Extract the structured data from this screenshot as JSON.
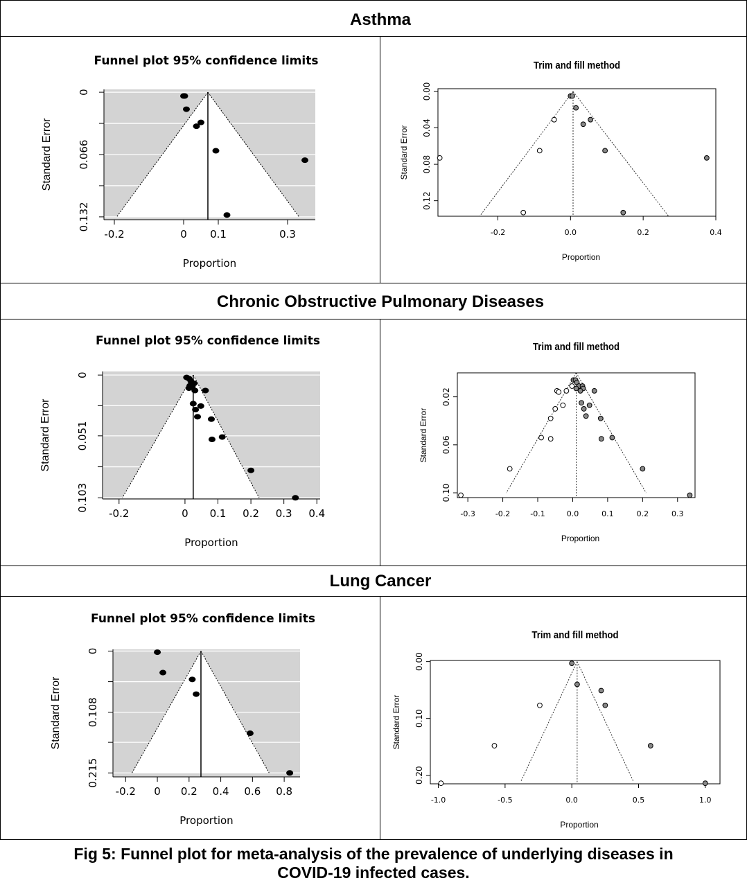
{
  "sections": [
    {
      "title": "Asthma",
      "funnel": {
        "type": "scatter",
        "title": "Funnel plot 95% confidence limits",
        "xlabel": "Proportion",
        "ylabel": "Standard Error",
        "xlim": [
          -0.23,
          0.38
        ],
        "ylim": [
          0.135,
          -0.003
        ],
        "xticks": [
          -0.2,
          0,
          0.1,
          0.3
        ],
        "xtick_labels": [
          "-0.2",
          "0",
          "0.1",
          "0.3"
        ],
        "yticks": [
          0,
          0.033,
          0.066,
          0.099,
          0.132
        ],
        "ytick_labels": [
          "0",
          "",
          "0.066",
          "",
          "0.132"
        ],
        "grid": true,
        "center": 0.07,
        "funnel_base_se": 0.132,
        "funnel_base_x": [
          -0.193,
          0.333
        ],
        "points": [
          {
            "x": 0.0,
            "y": 0.004
          },
          {
            "x": 0.003,
            "y": 0.004
          },
          {
            "x": 0.008,
            "y": 0.018
          },
          {
            "x": 0.037,
            "y": 0.036
          },
          {
            "x": 0.05,
            "y": 0.032
          },
          {
            "x": 0.093,
            "y": 0.062
          },
          {
            "x": 0.35,
            "y": 0.072
          },
          {
            "x": 0.125,
            "y": 0.13
          }
        ]
      },
      "trimfill": {
        "type": "scatter",
        "title": "Trim and fill method",
        "xlabel": "Proportion",
        "ylabel": "Standard Error",
        "xlim": [
          -0.365,
          0.4
        ],
        "ylim": [
          0.137,
          -0.003
        ],
        "xticks": [
          -0.2,
          0.0,
          0.2,
          0.4
        ],
        "xtick_labels": [
          "-0.2",
          "0.0",
          "0.2",
          "0.4"
        ],
        "yticks": [
          0.0,
          0.04,
          0.08,
          0.12
        ],
        "ytick_labels": [
          "0.00",
          "0.04",
          "0.08",
          "0.12"
        ],
        "grid": false,
        "center": 0.007,
        "funnel_base_se": 0.137,
        "funnel_base_x": [
          -0.25,
          0.27
        ],
        "points_filled": [
          {
            "x": 0.0,
            "y": 0.005
          },
          {
            "x": 0.005,
            "y": 0.005
          },
          {
            "x": 0.015,
            "y": 0.018
          },
          {
            "x": 0.035,
            "y": 0.036
          },
          {
            "x": 0.055,
            "y": 0.031
          },
          {
            "x": 0.095,
            "y": 0.065
          },
          {
            "x": 0.375,
            "y": 0.073
          },
          {
            "x": 0.145,
            "y": 0.133
          }
        ],
        "points_open": [
          {
            "x": -0.045,
            "y": 0.031
          },
          {
            "x": -0.085,
            "y": 0.065
          },
          {
            "x": -0.36,
            "y": 0.073
          },
          {
            "x": -0.13,
            "y": 0.133
          }
        ]
      }
    },
    {
      "title": "Chronic Obstructive Pulmonary Diseases",
      "funnel": {
        "type": "scatter",
        "title": "Funnel plot 95% confidence limits",
        "xlabel": "Proportion",
        "ylabel": "Standard Error",
        "xlim": [
          -0.25,
          0.41
        ],
        "ylim": [
          0.104,
          -0.003
        ],
        "xticks": [
          -0.2,
          0,
          0.1,
          0.2,
          0.3,
          0.4
        ],
        "xtick_labels": [
          "-0.2",
          "0",
          "0.1",
          "0.2",
          "0.3",
          "0.4"
        ],
        "yticks": [
          0,
          0.0257,
          0.051,
          0.077,
          0.103
        ],
        "ytick_labels": [
          "0",
          "",
          "0.051",
          "",
          "0.103"
        ],
        "grid": true,
        "center": 0.025,
        "funnel_base_se": 0.103,
        "funnel_base_x": [
          -0.19,
          0.225
        ],
        "points": [
          {
            "x": 0.005,
            "y": 0.002
          },
          {
            "x": 0.012,
            "y": 0.003
          },
          {
            "x": 0.018,
            "y": 0.005
          },
          {
            "x": 0.028,
            "y": 0.007
          },
          {
            "x": 0.015,
            "y": 0.009
          },
          {
            "x": 0.022,
            "y": 0.01
          },
          {
            "x": 0.012,
            "y": 0.011
          },
          {
            "x": 0.03,
            "y": 0.013
          },
          {
            "x": 0.062,
            "y": 0.013
          },
          {
            "x": 0.025,
            "y": 0.024
          },
          {
            "x": 0.048,
            "y": 0.026
          },
          {
            "x": 0.032,
            "y": 0.029
          },
          {
            "x": 0.038,
            "y": 0.035
          },
          {
            "x": 0.08,
            "y": 0.037
          },
          {
            "x": 0.113,
            "y": 0.052
          },
          {
            "x": 0.082,
            "y": 0.054
          },
          {
            "x": 0.2,
            "y": 0.08
          },
          {
            "x": 0.335,
            "y": 0.103
          }
        ]
      },
      "trimfill": {
        "type": "scatter",
        "title": "Trim and fill method",
        "xlabel": "Proportion",
        "ylabel": "Standard Error",
        "xlim": [
          -0.33,
          0.35
        ],
        "ylim": [
          0.104,
          0.0
        ],
        "xticks": [
          -0.3,
          -0.2,
          -0.1,
          0.0,
          0.1,
          0.2,
          0.3
        ],
        "xtick_labels": [
          "-0.3",
          "-0.2",
          "-0.1",
          "0.0",
          "0.1",
          "0.2",
          "0.3"
        ],
        "yticks": [
          0.02,
          0.06,
          0.1
        ],
        "ytick_labels": [
          "0.02",
          "0.06",
          "0.10"
        ],
        "grid": false,
        "center": 0.01,
        "funnel_base_se": 0.1,
        "funnel_base_x": [
          -0.19,
          0.21
        ],
        "points_filled": [
          {
            "x": 0.002,
            "y": 0.006
          },
          {
            "x": 0.008,
            "y": 0.006
          },
          {
            "x": 0.012,
            "y": 0.008
          },
          {
            "x": 0.018,
            "y": 0.011
          },
          {
            "x": 0.028,
            "y": 0.011
          },
          {
            "x": 0.01,
            "y": 0.013
          },
          {
            "x": 0.03,
            "y": 0.013
          },
          {
            "x": 0.022,
            "y": 0.015
          },
          {
            "x": 0.062,
            "y": 0.015
          },
          {
            "x": 0.025,
            "y": 0.025
          },
          {
            "x": 0.048,
            "y": 0.027
          },
          {
            "x": 0.032,
            "y": 0.03
          },
          {
            "x": 0.038,
            "y": 0.036
          },
          {
            "x": 0.08,
            "y": 0.038
          },
          {
            "x": 0.113,
            "y": 0.054
          },
          {
            "x": 0.082,
            "y": 0.055
          },
          {
            "x": 0.2,
            "y": 0.08
          },
          {
            "x": 0.335,
            "y": 0.102
          }
        ],
        "points_open": [
          {
            "x": -0.002,
            "y": 0.011
          },
          {
            "x": -0.018,
            "y": 0.015
          },
          {
            "x": -0.045,
            "y": 0.015
          },
          {
            "x": -0.04,
            "y": 0.016
          },
          {
            "x": -0.028,
            "y": 0.027
          },
          {
            "x": -0.05,
            "y": 0.03
          },
          {
            "x": -0.063,
            "y": 0.038
          },
          {
            "x": -0.09,
            "y": 0.054
          },
          {
            "x": -0.063,
            "y": 0.055
          },
          {
            "x": -0.18,
            "y": 0.08
          },
          {
            "x": -0.32,
            "y": 0.102
          }
        ]
      }
    },
    {
      "title": "Lung Cancer",
      "funnel": {
        "type": "scatter",
        "title": "Funnel plot 95% confidence limits",
        "xlabel": "Proportion",
        "ylabel": "Standard Error",
        "xlim": [
          -0.28,
          0.9
        ],
        "ylim": [
          0.222,
          -0.003
        ],
        "xticks": [
          -0.2,
          0,
          0.2,
          0.4,
          0.6,
          0.8
        ],
        "xtick_labels": [
          "-0.2",
          "0",
          "0.2",
          "0.4",
          "0.6",
          "0.8"
        ],
        "yticks": [
          0,
          0.054,
          0.108,
          0.161,
          0.215
        ],
        "ytick_labels": [
          "0",
          "",
          "0.108",
          "",
          "0.215"
        ],
        "grid": true,
        "center": 0.275,
        "funnel_base_se": 0.215,
        "funnel_base_x": [
          -0.16,
          0.705
        ],
        "points": [
          {
            "x": 0.0,
            "y": 0.002
          },
          {
            "x": 0.035,
            "y": 0.038
          },
          {
            "x": 0.22,
            "y": 0.05
          },
          {
            "x": 0.245,
            "y": 0.076
          },
          {
            "x": 0.585,
            "y": 0.145
          },
          {
            "x": 0.835,
            "y": 0.215
          }
        ]
      },
      "trimfill": {
        "type": "scatter",
        "title": "Trim and fill method",
        "xlabel": "Proportion",
        "ylabel": "Standard Error",
        "xlim": [
          -1.06,
          1.11
        ],
        "ylim": [
          0.215,
          -0.002
        ],
        "xticks": [
          -1.0,
          -0.5,
          0.0,
          0.5,
          1.0
        ],
        "xtick_labels": [
          "-1.0",
          "-0.5",
          "0.0",
          "0.5",
          "1.0"
        ],
        "yticks": [
          0.0,
          0.1,
          0.2
        ],
        "ytick_labels": [
          "0.00",
          "0.10",
          "0.20"
        ],
        "grid": false,
        "center": 0.04,
        "funnel_base_se": 0.21,
        "funnel_base_x": [
          -0.38,
          0.46
        ],
        "points_filled": [
          {
            "x": 0.0,
            "y": 0.003
          },
          {
            "x": 0.04,
            "y": 0.04
          },
          {
            "x": 0.22,
            "y": 0.051
          },
          {
            "x": 0.25,
            "y": 0.077
          },
          {
            "x": 0.59,
            "y": 0.148
          },
          {
            "x": 1.0,
            "y": 0.214
          }
        ],
        "points_open": [
          {
            "x": -0.24,
            "y": 0.077
          },
          {
            "x": -0.58,
            "y": 0.148
          },
          {
            "x": -0.98,
            "y": 0.214
          }
        ]
      }
    }
  ],
  "caption": {
    "line1": "Fig 5: Funnel plot for meta-analysis of the prevalence of underlying diseases in",
    "line2": "COVID-19 infected cases."
  },
  "colors": {
    "funnel_panel_bg": "#d3d3d3",
    "funnel_gridline": "#ffffff",
    "filled_point": "#888888",
    "open_point": "#ffffff"
  }
}
